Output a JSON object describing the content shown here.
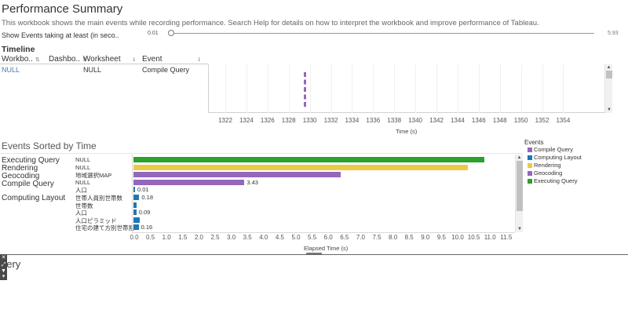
{
  "header": {
    "title": "Performance Summary",
    "description": "This workbook shows the main events while recording performance. Search Help for details on how to interpret the workbook and improve performance of Tableau."
  },
  "filter": {
    "label": "Show Events taking at least (in seco..",
    "min": "0.01",
    "max": "5.93",
    "value": 0.01
  },
  "timeline": {
    "title": "Timeline",
    "columns": [
      "Workbo..",
      "Dashbo..",
      "Worksheet",
      "Event"
    ],
    "row": {
      "workbook": "NULL",
      "dashboard": "",
      "worksheet": "NULL",
      "event": "Compile Query"
    },
    "axis_ticks": [
      "1322",
      "1324",
      "1326",
      "1328",
      "1330",
      "1332",
      "1334",
      "1336",
      "1338",
      "1340",
      "1342",
      "1344",
      "1346",
      "1348",
      "1350",
      "1352",
      "1354"
    ],
    "axis_title": "Time (s)",
    "marker_time": 1329.5
  },
  "events": {
    "title": "Events Sorted by Time",
    "axis_title": "Elapsed Time (s)",
    "axis_ticks": [
      "0.0",
      "0.5",
      "1.0",
      "1.5",
      "2.0",
      "2.5",
      "3.0",
      "3.5",
      "4.0",
      "4.5",
      "5.0",
      "5.5",
      "6.0",
      "6.5",
      "7.0",
      "7.5",
      "8.0",
      "8.5",
      "9.0",
      "9.5",
      "10.0",
      "10.5",
      "11.0",
      "11.5"
    ],
    "groups": [
      "Executing Query",
      "Rendering",
      "Geocoding",
      "Compile Query",
      "Computing Layout"
    ],
    "rows": [
      {
        "worksheet": "NULL",
        "value": 10.85,
        "color": "#2ca02c",
        "label": ""
      },
      {
        "worksheet": "NULL",
        "value": 10.35,
        "color": "#edc948",
        "label": ""
      },
      {
        "worksheet": "地域選択MAP",
        "value": 6.4,
        "color": "#9467bd",
        "label": ""
      },
      {
        "worksheet": "NULL",
        "value": 3.43,
        "color": "#9467bd",
        "label": "3.43"
      },
      {
        "worksheet": "人口",
        "value": 0.01,
        "color": "#1f77b4",
        "label": "0.01"
      },
      {
        "worksheet": "世帯人員別世帯数",
        "value": 0.18,
        "color": "#1f77b4",
        "label": "0.18"
      },
      {
        "worksheet": "世帯数",
        "value": 0.1,
        "color": "#1f77b4",
        "label": ""
      },
      {
        "worksheet": "人口",
        "value": 0.09,
        "color": "#1f77b4",
        "label": "0.09"
      },
      {
        "worksheet": "人口ピラミッド",
        "value": 0.2,
        "color": "#1f77b4",
        "label": ""
      },
      {
        "worksheet": "住宅の建て方別世帯割..",
        "value": 0.16,
        "color": "#1f77b4",
        "label": "0.16"
      }
    ]
  },
  "legend": {
    "title": "Events",
    "items": [
      {
        "label": "Compile Query",
        "color": "#9467bd"
      },
      {
        "label": "Computing Layout",
        "color": "#1f77b4"
      },
      {
        "label": "Rendering",
        "color": "#edc948"
      },
      {
        "label": "Geocoding",
        "color": "#9467bd"
      },
      {
        "label": "Executing Query",
        "color": "#2ca02c"
      }
    ]
  },
  "bottom": {
    "text": "uery"
  }
}
